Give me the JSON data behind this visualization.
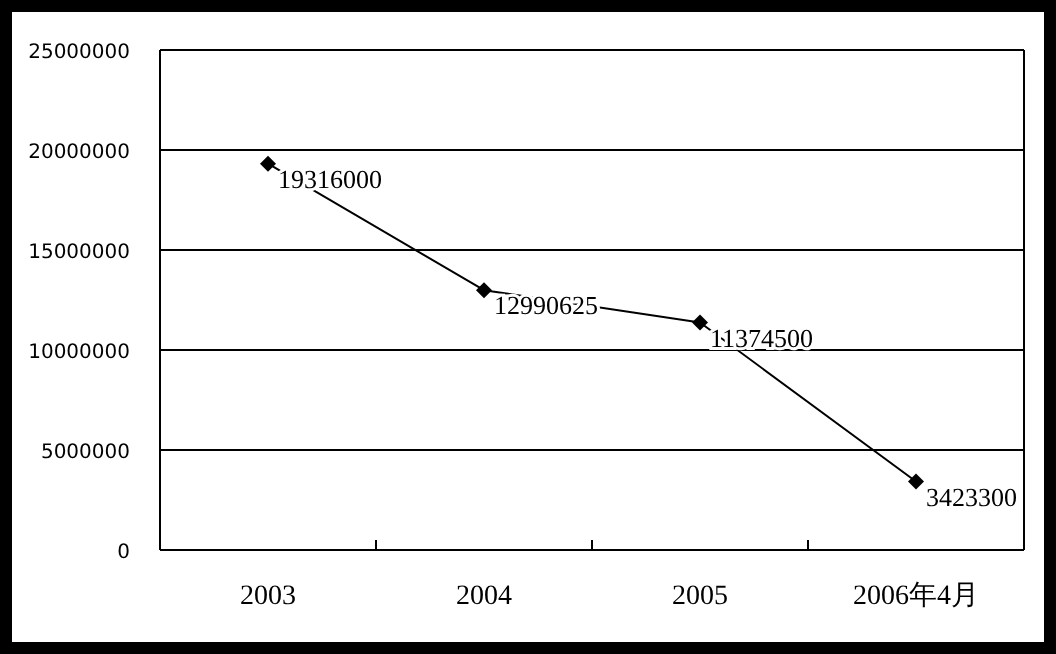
{
  "chart_data": {
    "type": "line",
    "categories": [
      "2003",
      "2004",
      "2005",
      "2006年4月"
    ],
    "values": [
      19316000,
      12990625,
      11374500,
      3423300
    ],
    "color": "#000000",
    "marker": "diamond",
    "line_style": "solid",
    "data_labels": true,
    "grid": "y",
    "ylim": [
      0,
      25000000
    ],
    "yticks": [
      0,
      5000000,
      10000000,
      15000000,
      20000000,
      25000000
    ]
  }
}
